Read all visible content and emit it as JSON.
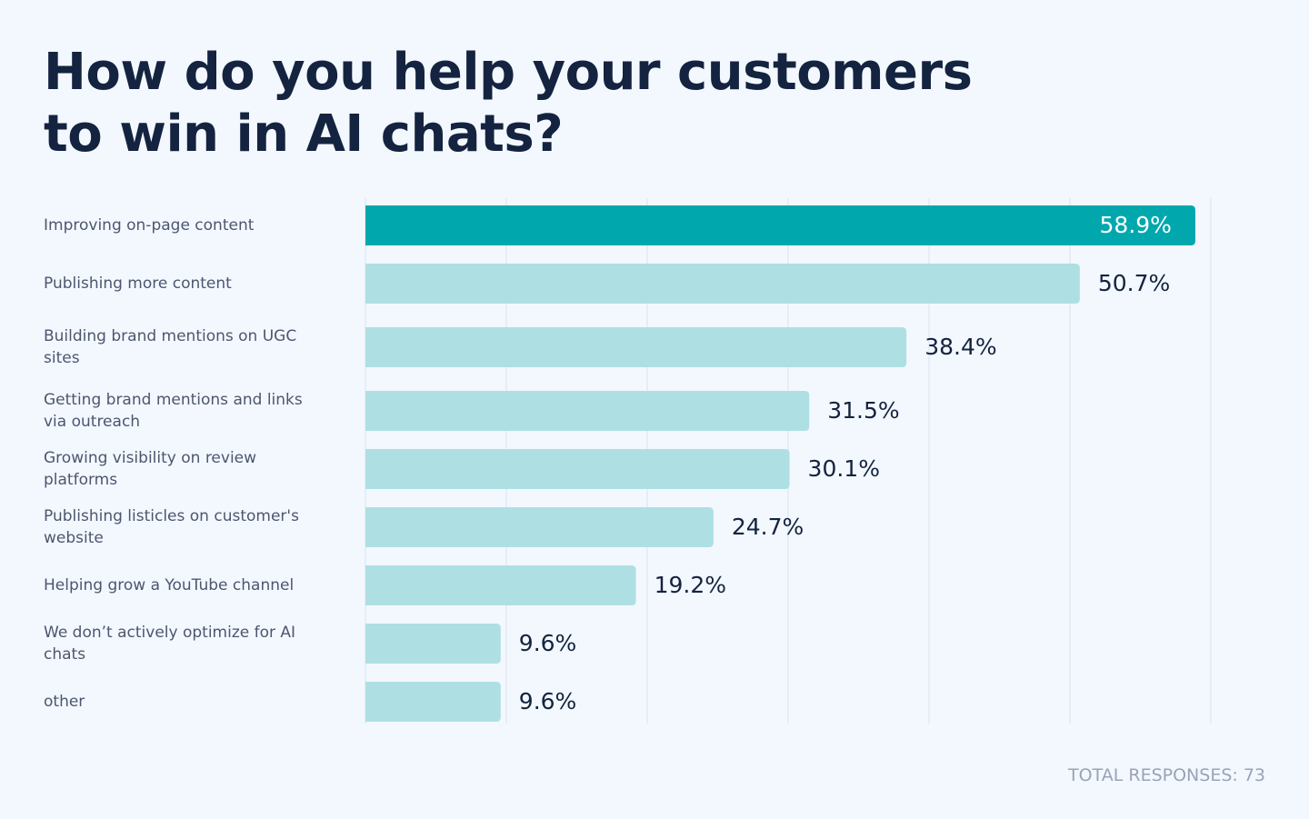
{
  "chart_data": {
    "type": "hbar",
    "title": "How do you help your customers to win in AI chats?",
    "categories": [
      "Improving on-page content",
      "Publishing more content",
      "Building brand mentions on UGC sites",
      "Getting brand mentions and links via outreach",
      "Growing visibility on review platforms",
      "Publishing listicles on customer's website",
      "Helping grow a YouTube channel",
      "We don’t actively optimize for AI chats",
      "other"
    ],
    "values": [
      58.9,
      50.7,
      38.4,
      31.5,
      30.1,
      24.7,
      19.2,
      9.6,
      9.6
    ],
    "value_labels": [
      "58.9%",
      "50.7%",
      "38.4%",
      "31.5%",
      "30.1%",
      "24.7%",
      "19.2%",
      "9.6%",
      "9.6%"
    ],
    "colors": [
      "#00a8ad",
      "#aee0e3",
      "#aee0e3",
      "#aee0e3",
      "#aee0e3",
      "#aee0e3",
      "#aee0e3",
      "#aee0e3",
      "#aee0e3"
    ],
    "xlim": [
      0,
      60
    ],
    "xticks": [
      0,
      10,
      20,
      30,
      40,
      50,
      60
    ],
    "grid": true,
    "footnote": "TOTAL RESPONSES: 73"
  }
}
